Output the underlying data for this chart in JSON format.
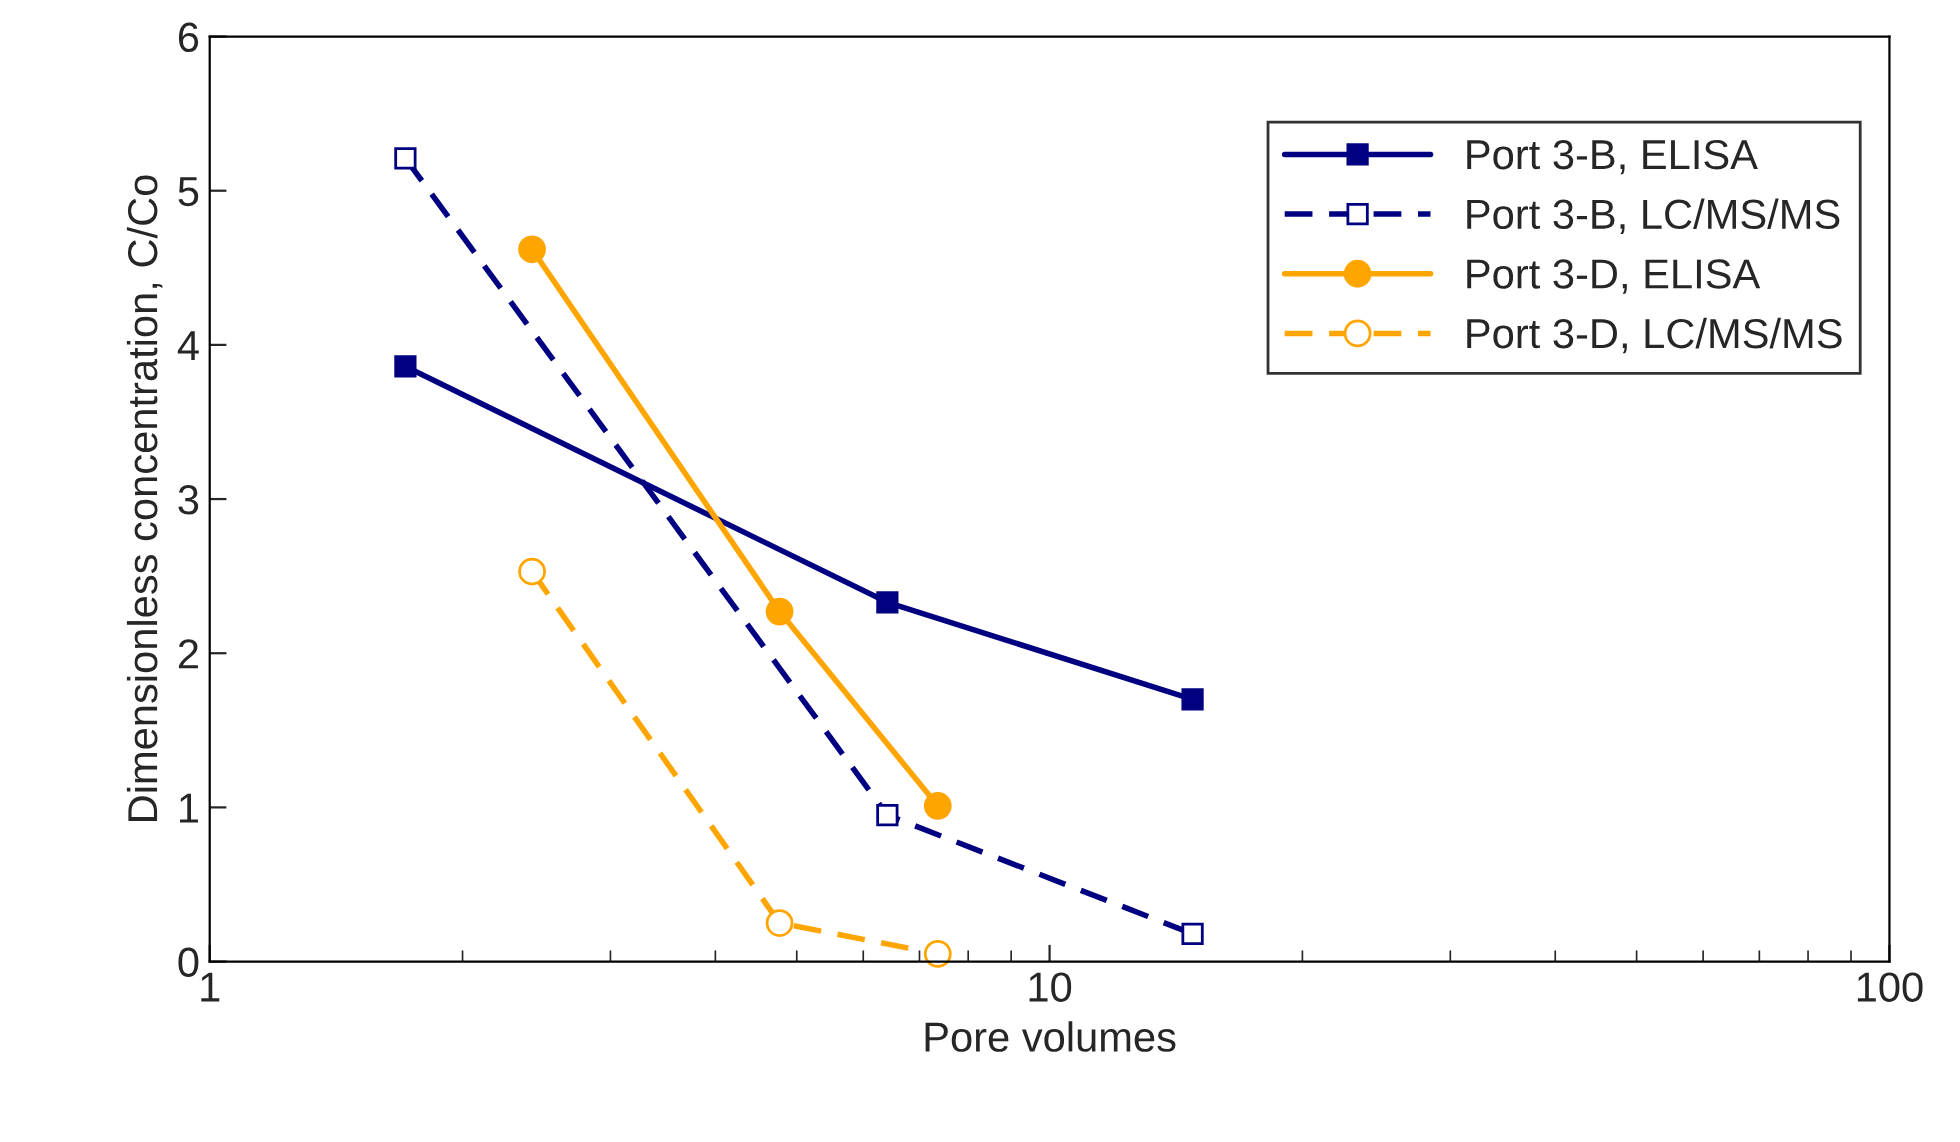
{
  "chart_data": {
    "type": "line",
    "xlabel": "Pore volumes",
    "ylabel": "Dimensionless concentration, C/Co",
    "log": "x",
    "xlim": [
      1,
      100
    ],
    "xticks": [
      1,
      10,
      100
    ],
    "ylim": [
      0,
      6
    ],
    "yticks": [
      0,
      1,
      2,
      3,
      4,
      5,
      6
    ],
    "grid": false,
    "legend": "top right",
    "series": [
      {
        "name": "Port 3-B, ELISA",
        "color": "#000080",
        "marker": "square",
        "line_style": "solid",
        "x": [
          1.71,
          6.41,
          14.8
        ],
        "values": [
          3.86,
          2.33,
          1.7
        ]
      },
      {
        "name": "Port 3-B, LC/MS/MS",
        "color": "#000080",
        "marker": "square",
        "line_style": "dashed",
        "x": [
          1.71,
          6.41,
          14.8
        ],
        "values": [
          5.21,
          0.95,
          0.18
        ]
      },
      {
        "name": "Port 3-D, ELISA",
        "color": "#ffa500",
        "marker": "circle",
        "line_style": "solid",
        "x": [
          2.42,
          4.77,
          7.36
        ],
        "values": [
          4.62,
          2.27,
          1.01
        ]
      },
      {
        "name": "Port 3-D, LC/MS/MS",
        "color": "#ffa500",
        "marker": "circle",
        "line_style": "dashed",
        "x": [
          2.42,
          4.77,
          7.36
        ],
        "values": [
          2.53,
          0.25,
          0.05
        ]
      }
    ]
  }
}
